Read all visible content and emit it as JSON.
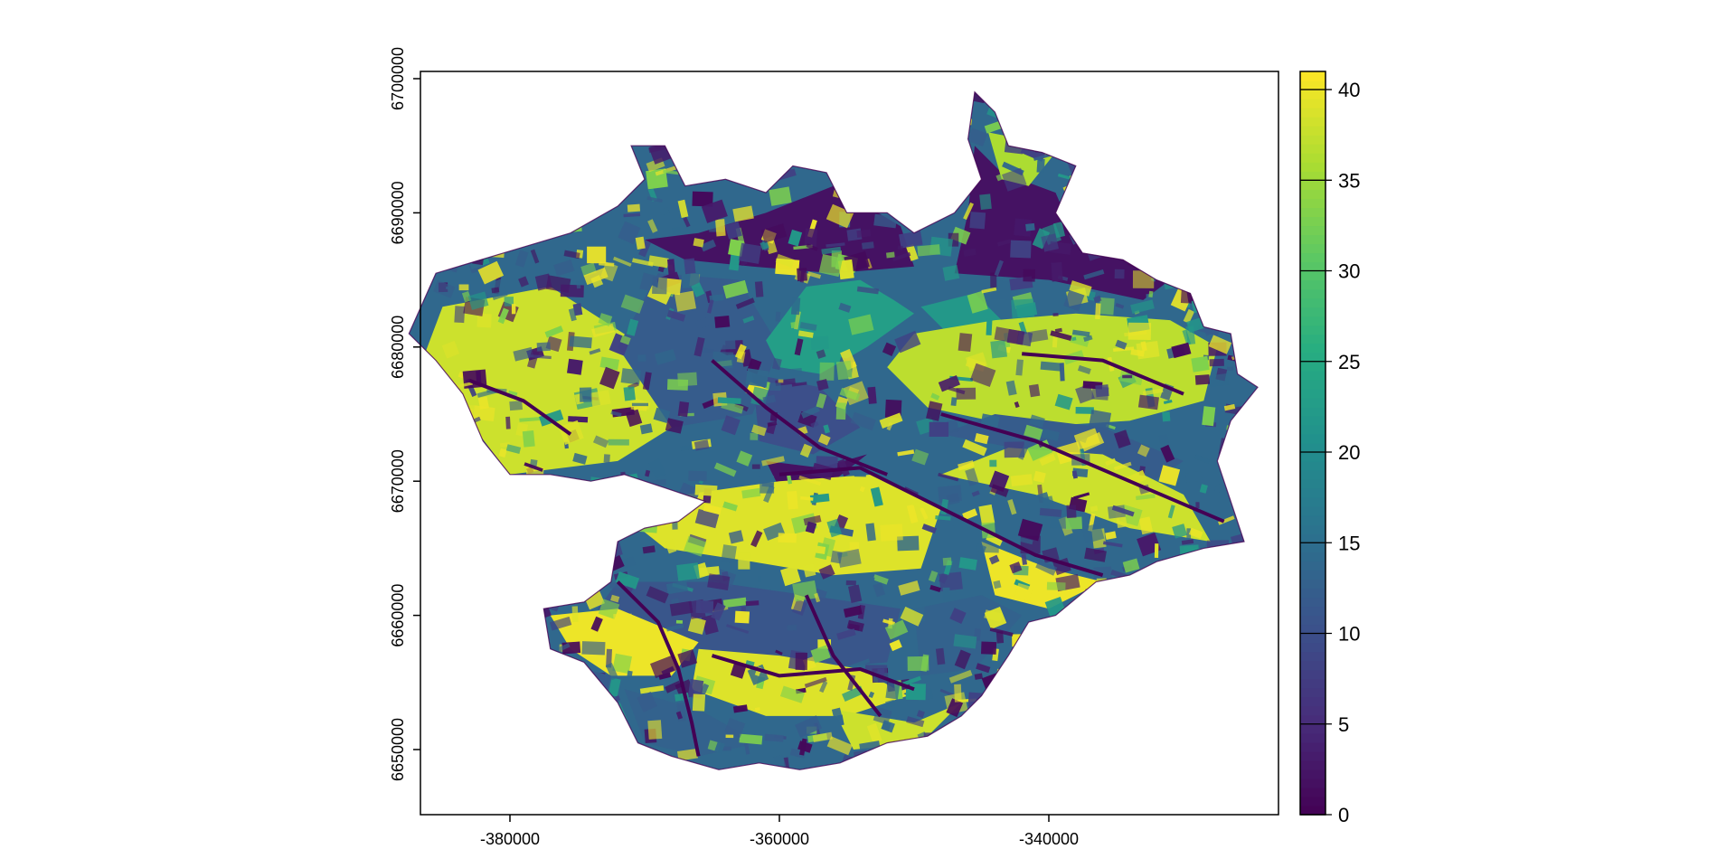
{
  "chart_data": {
    "type": "heatmap",
    "title": "",
    "xlabel": "",
    "ylabel": "",
    "xlim": [
      -388000,
      -324000
    ],
    "ylim": [
      6645000,
      6700500
    ],
    "x_ticks": [
      {
        "value": -380000,
        "label": "-380000"
      },
      {
        "value": -360000,
        "label": "-360000"
      },
      {
        "value": -340000,
        "label": "-340000"
      }
    ],
    "y_ticks": [
      {
        "value": 6650000,
        "label": "6650000"
      },
      {
        "value": 6660000,
        "label": "6660000"
      },
      {
        "value": 6670000,
        "label": "6670000"
      },
      {
        "value": 6680000,
        "label": "6680000"
      },
      {
        "value": 6690000,
        "label": "6690000"
      },
      {
        "value": 6700000,
        "label": "6700000"
      }
    ],
    "value_range": [
      0,
      41
    ],
    "colorbar": {
      "position": "right",
      "ticks": [
        {
          "value": 0,
          "label": "0"
        },
        {
          "value": 5,
          "label": "5"
        },
        {
          "value": 10,
          "label": "10"
        },
        {
          "value": 15,
          "label": "15"
        },
        {
          "value": 20,
          "label": "20"
        },
        {
          "value": 25,
          "label": "25"
        },
        {
          "value": 30,
          "label": "30"
        },
        {
          "value": 35,
          "label": "35"
        },
        {
          "value": 40,
          "label": "40"
        }
      ]
    },
    "palette": [
      "#440154",
      "#472c7a",
      "#3b518b",
      "#2c718e",
      "#21908d",
      "#27ad81",
      "#5cc863",
      "#aadc32",
      "#fde725"
    ],
    "region_outline_xy": [
      [
        -387500,
        6681000
      ],
      [
        -385500,
        6685500
      ],
      [
        -380500,
        6687000
      ],
      [
        -375500,
        6688500
      ],
      [
        -372000,
        6690500
      ],
      [
        -370000,
        6692500
      ],
      [
        -371000,
        6695000
      ],
      [
        -368500,
        6695000
      ],
      [
        -367000,
        6692000
      ],
      [
        -364000,
        6692500
      ],
      [
        -361000,
        6691500
      ],
      [
        -359000,
        6693500
      ],
      [
        -356500,
        6693000
      ],
      [
        -355000,
        6690000
      ],
      [
        -352000,
        6690000
      ],
      [
        -350000,
        6688500
      ],
      [
        -347000,
        6690000
      ],
      [
        -345000,
        6692500
      ],
      [
        -346000,
        6695500
      ],
      [
        -345500,
        6699000
      ],
      [
        -344000,
        6697500
      ],
      [
        -343000,
        6695000
      ],
      [
        -340500,
        6694500
      ],
      [
        -338000,
        6693500
      ],
      [
        -339500,
        6690000
      ],
      [
        -337500,
        6687000
      ],
      [
        -334500,
        6686500
      ],
      [
        -332000,
        6685000
      ],
      [
        -329500,
        6684000
      ],
      [
        -328500,
        6681500
      ],
      [
        -326500,
        6681000
      ],
      [
        -326000,
        6678000
      ],
      [
        -324500,
        6677000
      ],
      [
        -326500,
        6674500
      ],
      [
        -327500,
        6671500
      ],
      [
        -326500,
        6668500
      ],
      [
        -325500,
        6665500
      ],
      [
        -328500,
        6665000
      ],
      [
        -332000,
        6664000
      ],
      [
        -334000,
        6663000
      ],
      [
        -336500,
        6662500
      ],
      [
        -339500,
        6660000
      ],
      [
        -341500,
        6659500
      ],
      [
        -343000,
        6657000
      ],
      [
        -345000,
        6654000
      ],
      [
        -346500,
        6652500
      ],
      [
        -349000,
        6651000
      ],
      [
        -352000,
        6650500
      ],
      [
        -355500,
        6649000
      ],
      [
        -358500,
        6648500
      ],
      [
        -361500,
        6649000
      ],
      [
        -364500,
        6648500
      ],
      [
        -368000,
        6649500
      ],
      [
        -370500,
        6650500
      ],
      [
        -372000,
        6653500
      ],
      [
        -374500,
        6656500
      ],
      [
        -377000,
        6657500
      ],
      [
        -377500,
        6660500
      ],
      [
        -374500,
        6661000
      ],
      [
        -372500,
        6662500
      ],
      [
        -372000,
        6665500
      ],
      [
        -370000,
        6666500
      ],
      [
        -367500,
        6667000
      ],
      [
        -365500,
        6668500
      ],
      [
        -368500,
        6669500
      ],
      [
        -371500,
        6670500
      ],
      [
        -374000,
        6670000
      ],
      [
        -377000,
        6670500
      ],
      [
        -380000,
        6670500
      ],
      [
        -382000,
        6673000
      ],
      [
        -383500,
        6676500
      ],
      [
        -385500,
        6679000
      ]
    ],
    "zones": [
      {
        "value": 38,
        "polygon": [
          [
            -380000,
            6670500
          ],
          [
            -372000,
            6671500
          ],
          [
            -368000,
            6674000
          ],
          [
            -370000,
            6680000
          ],
          [
            -377000,
            6684500
          ],
          [
            -385000,
            6683000
          ],
          [
            -386500,
            6679000
          ]
        ]
      },
      {
        "value": 12,
        "polygon": [
          [
            -368000,
            6674000
          ],
          [
            -362000,
            6675000
          ],
          [
            -360000,
            6680000
          ],
          [
            -363000,
            6685000
          ],
          [
            -369000,
            6685500
          ],
          [
            -372000,
            6680000
          ]
        ]
      },
      {
        "value": 2,
        "polygon": [
          [
            -370000,
            6688000
          ],
          [
            -366000,
            6688500
          ],
          [
            -361000,
            6690000
          ],
          [
            -356000,
            6692000
          ],
          [
            -351000,
            6689000
          ],
          [
            -350000,
            6686000
          ],
          [
            -356000,
            6685500
          ],
          [
            -362000,
            6686000
          ],
          [
            -367000,
            6686500
          ]
        ]
      },
      {
        "value": 23,
        "polygon": [
          [
            -361000,
            6680500
          ],
          [
            -358000,
            6684500
          ],
          [
            -354000,
            6685000
          ],
          [
            -351500,
            6683500
          ],
          [
            -350000,
            6682500
          ],
          [
            -353500,
            6680000
          ],
          [
            -357000,
            6678000
          ],
          [
            -360000,
            6678500
          ]
        ]
      },
      {
        "value": 22,
        "polygon": [
          [
            -349500,
            6683000
          ],
          [
            -345500,
            6684000
          ],
          [
            -343500,
            6682000
          ],
          [
            -347000,
            6680500
          ]
        ]
      },
      {
        "value": 10,
        "polygon": [
          [
            -362000,
            6678000
          ],
          [
            -357000,
            6677000
          ],
          [
            -354000,
            6674000
          ],
          [
            -357500,
            6672000
          ],
          [
            -361500,
            6673000
          ]
        ]
      },
      {
        "value": 2,
        "polygon": [
          [
            -361000,
            6671500
          ],
          [
            -357000,
            6671000
          ],
          [
            -353500,
            6672000
          ],
          [
            -356000,
            6670000
          ],
          [
            -360000,
            6669500
          ]
        ]
      },
      {
        "value": 2,
        "polygon": [
          [
            -347000,
            6685500
          ],
          [
            -346000,
            6690000
          ],
          [
            -345500,
            6695000
          ],
          [
            -343500,
            6693000
          ],
          [
            -339500,
            6691500
          ],
          [
            -338000,
            6688000
          ],
          [
            -334000,
            6686500
          ],
          [
            -331000,
            6685000
          ],
          [
            -333000,
            6683500
          ],
          [
            -340000,
            6685000
          ]
        ]
      },
      {
        "value": 37,
        "polygon": [
          [
            -350000,
            6681000
          ],
          [
            -344000,
            6682000
          ],
          [
            -338000,
            6682500
          ],
          [
            -331000,
            6682000
          ],
          [
            -327500,
            6680000
          ],
          [
            -328500,
            6676000
          ],
          [
            -334000,
            6674500
          ],
          [
            -342000,
            6674000
          ],
          [
            -349000,
            6675500
          ],
          [
            -352000,
            6678500
          ]
        ]
      },
      {
        "value": 36,
        "polygon": [
          [
            -344500,
            6696000
          ],
          [
            -342000,
            6695500
          ],
          [
            -339500,
            6694500
          ],
          [
            -341500,
            6692000
          ],
          [
            -343500,
            6692500
          ]
        ]
      },
      {
        "value": 12,
        "polygon": [
          [
            -348000,
            6673500
          ],
          [
            -340000,
            6672000
          ],
          [
            -333000,
            6669500
          ],
          [
            -330000,
            6671500
          ],
          [
            -336000,
            6674000
          ],
          [
            -344000,
            6675000
          ]
        ]
      },
      {
        "value": 39,
        "polygon": [
          [
            -367000,
            6669000
          ],
          [
            -360000,
            6670000
          ],
          [
            -353000,
            6670500
          ],
          [
            -348000,
            6668000
          ],
          [
            -349500,
            6663500
          ],
          [
            -356000,
            6663000
          ],
          [
            -362000,
            6664000
          ],
          [
            -368500,
            6665000
          ],
          [
            -371000,
            6667000
          ]
        ]
      },
      {
        "value": 38,
        "polygon": [
          [
            -348000,
            6670500
          ],
          [
            -341000,
            6669000
          ],
          [
            -334000,
            6666500
          ],
          [
            -328000,
            6665500
          ],
          [
            -330000,
            6669000
          ],
          [
            -336000,
            6672000
          ],
          [
            -343000,
            6672500
          ]
        ]
      },
      {
        "value": 11,
        "polygon": [
          [
            -372000,
            6662500
          ],
          [
            -365000,
            6662500
          ],
          [
            -358000,
            6661500
          ],
          [
            -351000,
            6660500
          ],
          [
            -352000,
            6656500
          ],
          [
            -358000,
            6656000
          ],
          [
            -364000,
            6657000
          ],
          [
            -370000,
            6658500
          ],
          [
            -373500,
            6660500
          ]
        ]
      },
      {
        "value": 40,
        "polygon": [
          [
            -377000,
            6660000
          ],
          [
            -372000,
            6660500
          ],
          [
            -366000,
            6658000
          ],
          [
            -368000,
            6655500
          ],
          [
            -372500,
            6655500
          ],
          [
            -375500,
            6657500
          ]
        ]
      },
      {
        "value": 39,
        "polygon": [
          [
            -366000,
            6657500
          ],
          [
            -360000,
            6657000
          ],
          [
            -354000,
            6656000
          ],
          [
            -350500,
            6654000
          ],
          [
            -355000,
            6652500
          ],
          [
            -361000,
            6652500
          ],
          [
            -366500,
            6654500
          ]
        ]
      },
      {
        "value": 13,
        "polygon": [
          [
            -371500,
            6654500
          ],
          [
            -366000,
            6653000
          ],
          [
            -361500,
            6650500
          ],
          [
            -366000,
            6649500
          ],
          [
            -370000,
            6650500
          ]
        ]
      },
      {
        "value": 38,
        "polygon": [
          [
            -356000,
            6653000
          ],
          [
            -350000,
            6652000
          ],
          [
            -346500,
            6653500
          ],
          [
            -349500,
            6650500
          ],
          [
            -354500,
            6650000
          ]
        ]
      },
      {
        "value": 13,
        "polygon": [
          [
            -350000,
            6660500
          ],
          [
            -345000,
            6661500
          ],
          [
            -342000,
            6660000
          ],
          [
            -345500,
            6656000
          ],
          [
            -349500,
            6655500
          ]
        ]
      },
      {
        "value": 40,
        "polygon": [
          [
            -345000,
            6665500
          ],
          [
            -340000,
            6663500
          ],
          [
            -336000,
            6662500
          ],
          [
            -340000,
            6660500
          ],
          [
            -344000,
            6661500
          ]
        ]
      }
    ]
  }
}
